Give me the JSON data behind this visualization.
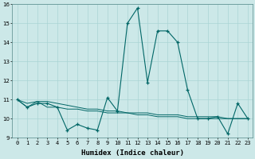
{
  "x": [
    0,
    1,
    2,
    3,
    4,
    5,
    6,
    7,
    8,
    9,
    10,
    11,
    12,
    13,
    14,
    15,
    16,
    17,
    18,
    19,
    20,
    21,
    22,
    23
  ],
  "y_main": [
    11,
    10.6,
    10.8,
    10.8,
    10.6,
    9.4,
    9.7,
    9.5,
    9.4,
    11.1,
    10.4,
    15.0,
    15.8,
    11.9,
    14.6,
    14.6,
    14.0,
    11.5,
    10.0,
    10.0,
    10.1,
    9.2,
    10.8,
    10.0
  ],
  "y_trend1": [
    11,
    10.6,
    10.9,
    10.6,
    10.6,
    10.5,
    10.5,
    10.4,
    10.4,
    10.3,
    10.3,
    10.3,
    10.2,
    10.2,
    10.1,
    10.1,
    10.1,
    10.0,
    10.0,
    10.0,
    10.0,
    10.0,
    10.0,
    10.0
  ],
  "y_trend2": [
    11,
    10.8,
    10.9,
    10.9,
    10.8,
    10.7,
    10.6,
    10.5,
    10.5,
    10.4,
    10.4,
    10.3,
    10.3,
    10.3,
    10.2,
    10.2,
    10.2,
    10.1,
    10.1,
    10.1,
    10.1,
    10.0,
    10.0,
    10.0
  ],
  "line_color": "#006666",
  "bg_color": "#cce8e8",
  "grid_color": "#aad4d4",
  "xlabel": "Humidex (Indice chaleur)",
  "ylim": [
    9,
    16
  ],
  "xlim": [
    -0.5,
    23.5
  ],
  "yticks": [
    9,
    10,
    11,
    12,
    13,
    14,
    15,
    16
  ],
  "xticks": [
    0,
    1,
    2,
    3,
    4,
    5,
    6,
    7,
    8,
    9,
    10,
    11,
    12,
    13,
    14,
    15,
    16,
    17,
    18,
    19,
    20,
    21,
    22,
    23
  ],
  "xtick_labels": [
    "0",
    "1",
    "2",
    "3",
    "4",
    "5",
    "6",
    "7",
    "8",
    "9",
    "10",
    "11",
    "12",
    "13",
    "14",
    "15",
    "16",
    "17",
    "18",
    "19",
    "20",
    "21",
    "22",
    "23"
  ],
  "tick_fontsize": 5.0,
  "xlabel_fontsize": 6.5,
  "xlabel_fontweight": "bold"
}
